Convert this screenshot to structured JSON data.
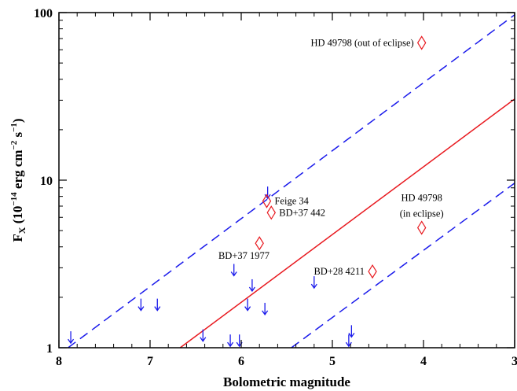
{
  "chart_data": {
    "type": "scatter",
    "xlabel": "Bolometric magnitude",
    "ylabel": "F",
    "ylabel_sub": "X",
    "ylabel_units": "(10",
    "ylabel_exp1": "−14",
    "ylabel_units2": "erg cm",
    "ylabel_exp2": "−2",
    "ylabel_units3": "s",
    "ylabel_exp3": "−1",
    "ylabel_close": ")",
    "xlim": [
      8,
      3
    ],
    "ylim": [
      1,
      100
    ],
    "yscale": "log",
    "xticks": [
      8,
      7,
      6,
      5,
      4,
      3
    ],
    "xtick_labels": [
      "8",
      "7",
      "6",
      "5",
      "4",
      "3"
    ],
    "yticks": [
      1,
      10,
      100
    ],
    "ytick_labels": [
      "1",
      "10",
      "100"
    ],
    "grid": false,
    "colors": {
      "detections": "#e8191f",
      "upper_limits": "#1a1aeb",
      "fit_line": "#e8191f",
      "bounds": "#1a1aeb"
    },
    "lines": [
      {
        "style": "solid",
        "color": "#e8191f",
        "points": [
          [
            6.67,
            1.0
          ],
          [
            3.0,
            30.5
          ]
        ]
      },
      {
        "style": "dashed",
        "color": "#1a1aeb",
        "points": [
          [
            7.9,
            1.0
          ],
          [
            3.0,
            97.0
          ]
        ]
      },
      {
        "style": "dashed",
        "color": "#1a1aeb",
        "points": [
          [
            5.45,
            1.0
          ],
          [
            3.0,
            9.6
          ]
        ]
      }
    ],
    "detections": [
      {
        "x": 4.02,
        "y": 66.0,
        "label": "HD 49798 (out of eclipse)",
        "label_pos": "left"
      },
      {
        "x": 5.72,
        "y": 7.5,
        "label": "Feige 34",
        "label_pos": "right"
      },
      {
        "x": 5.67,
        "y": 6.4,
        "label": "BD+37 442",
        "label_pos": "right"
      },
      {
        "x": 5.8,
        "y": 4.2,
        "label": "",
        "label_pos": ""
      },
      {
        "x": 4.02,
        "y": 5.2,
        "label": "HD 49798\n(in eclipse)",
        "label_pos": "above"
      },
      {
        "x": 4.56,
        "y": 2.85,
        "label": "BD+28 4211",
        "label_pos": "left"
      }
    ],
    "annotations": [
      {
        "text": "BD+37 1977",
        "x": 5.97,
        "y": 3.4
      }
    ],
    "upper_limits": [
      {
        "x": 7.87,
        "y": 1.15
      },
      {
        "x": 7.1,
        "y": 1.8
      },
      {
        "x": 6.92,
        "y": 1.8
      },
      {
        "x": 6.42,
        "y": 1.18
      },
      {
        "x": 6.12,
        "y": 1.1
      },
      {
        "x": 6.02,
        "y": 1.1
      },
      {
        "x": 6.08,
        "y": 2.9
      },
      {
        "x": 5.93,
        "y": 1.8
      },
      {
        "x": 5.88,
        "y": 2.35
      },
      {
        "x": 5.74,
        "y": 1.7
      },
      {
        "x": 5.71,
        "y": 8.4
      },
      {
        "x": 5.2,
        "y": 2.45
      },
      {
        "x": 4.82,
        "y": 1.1
      },
      {
        "x": 4.79,
        "y": 1.25
      }
    ]
  }
}
